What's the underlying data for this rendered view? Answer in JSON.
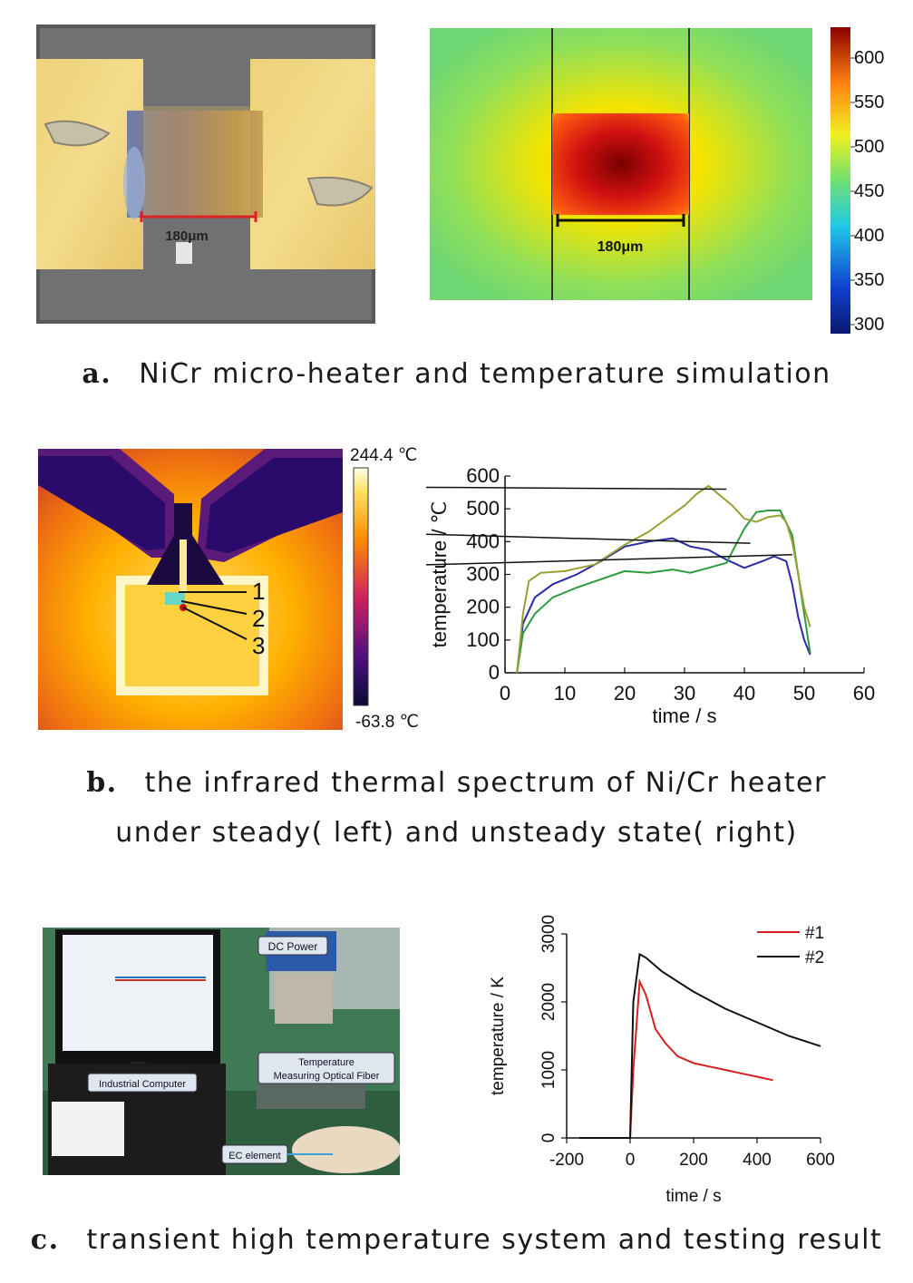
{
  "panel_a": {
    "photo_scale": "180μm",
    "sim_scale": "180μm",
    "colorbar_ticks": [
      "600",
      "550",
      "500",
      "450",
      "400",
      "350",
      "300"
    ],
    "caption_letter": "a.",
    "caption_text": "NiCr micro-heater and temperature simulation"
  },
  "panel_b": {
    "ir_max": "244.4 ℃",
    "ir_min": "-63.8 ℃",
    "ir_markers": [
      "1",
      "2",
      "3"
    ],
    "caption_letter": "b.",
    "caption_line1": "the infrared thermal spectrum of Ni/Cr heater",
    "caption_line2": "under steady( left) and unsteady state( right)"
  },
  "panel_c": {
    "labels": {
      "dc_power": "DC Power",
      "industrial_computer": "Industrial Computer",
      "fiber_line1": "Temperature",
      "fiber_line2": "Measuring Optical Fiber",
      "ec_element": "EC element"
    },
    "caption_letter": "c.",
    "caption_text": "transient high temperature system and testing result"
  },
  "colors": {
    "curve1": "#2a2aa8",
    "curve2": "#2e9a3e",
    "curve3": "#9aa032",
    "series_1": "#d42020",
    "series_2": "#111111"
  },
  "chart_data": [
    {
      "type": "line",
      "xlabel": "time / s",
      "ylabel": "temperature / ℃",
      "xlim": [
        0,
        60
      ],
      "ylim": [
        0,
        600
      ],
      "xticks": [
        "0",
        "10",
        "20",
        "30",
        "40",
        "50",
        "60"
      ],
      "yticks": [
        "0",
        "100",
        "200",
        "300",
        "400",
        "500",
        "600"
      ],
      "series": [
        {
          "name": "1",
          "x": [
            2,
            3,
            5,
            8,
            12,
            16,
            20,
            24,
            28,
            31,
            34,
            37,
            40,
            43,
            45,
            47,
            48,
            49,
            50,
            51
          ],
          "y": [
            0,
            150,
            230,
            270,
            300,
            340,
            385,
            400,
            410,
            385,
            375,
            345,
            320,
            340,
            355,
            340,
            270,
            170,
            100,
            55
          ]
        },
        {
          "name": "2",
          "x": [
            2,
            3,
            5,
            8,
            12,
            16,
            20,
            24,
            28,
            31,
            34,
            37,
            40,
            42,
            44,
            46,
            48,
            49,
            50,
            51
          ],
          "y": [
            0,
            120,
            180,
            230,
            260,
            285,
            310,
            305,
            315,
            305,
            320,
            335,
            440,
            490,
            495,
            495,
            420,
            300,
            180,
            60
          ]
        },
        {
          "name": "3",
          "x": [
            2,
            3,
            4,
            6,
            10,
            15,
            20,
            24,
            27,
            30,
            32,
            34,
            36,
            38,
            40,
            42,
            44,
            46,
            47,
            48,
            49,
            50,
            51
          ],
          "y": [
            0,
            180,
            280,
            305,
            310,
            330,
            390,
            430,
            470,
            510,
            545,
            570,
            540,
            510,
            470,
            460,
            475,
            480,
            460,
            400,
            300,
            200,
            140
          ]
        }
      ],
      "annotations": [
        "1",
        "2",
        "3"
      ]
    },
    {
      "type": "line",
      "xlabel": "time / s",
      "ylabel": "temperature / K",
      "xlim": [
        -200,
        600
      ],
      "ylim": [
        0,
        3000
      ],
      "xticks": [
        "-200",
        "0",
        "200",
        "400",
        "600"
      ],
      "yticks": [
        "0",
        "1000",
        "2000",
        "3000"
      ],
      "legend": "top-right",
      "series": [
        {
          "name": "#1",
          "x": [
            -160,
            0,
            10,
            30,
            50,
            80,
            110,
            150,
            200,
            250,
            300,
            350,
            400,
            450
          ],
          "y": [
            0,
            0,
            1000,
            2300,
            2100,
            1600,
            1400,
            1200,
            1100,
            1050,
            1000,
            950,
            900,
            850
          ]
        },
        {
          "name": "#2",
          "x": [
            -160,
            0,
            10,
            30,
            50,
            100,
            200,
            300,
            400,
            500,
            600
          ],
          "y": [
            0,
            0,
            2000,
            2700,
            2650,
            2450,
            2150,
            1900,
            1700,
            1500,
            1350
          ]
        }
      ]
    }
  ]
}
